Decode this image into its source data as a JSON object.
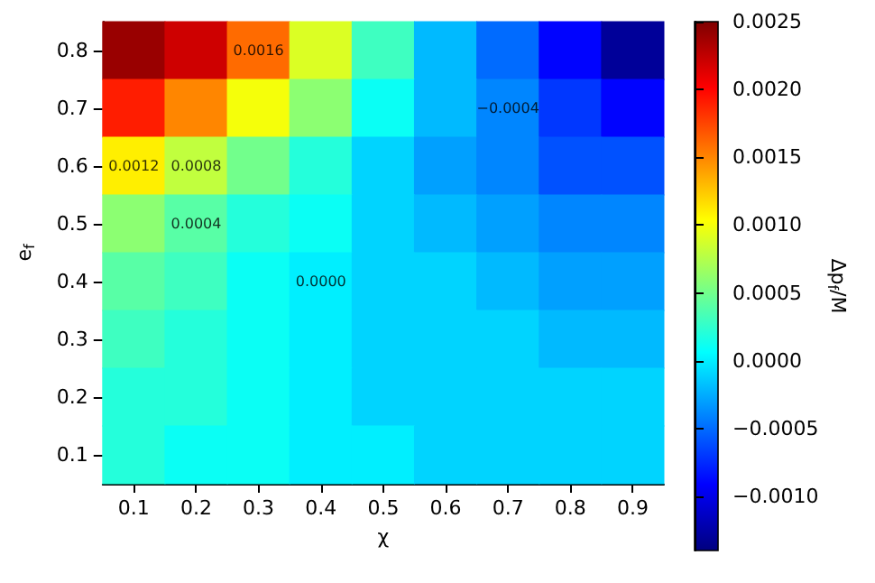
{
  "chart_data": {
    "type": "heatmap",
    "xlabel": "χ",
    "ylabel": "e$_{f}$",
    "clabel": "Δp$_{f}$/M",
    "categories": [
      "0.1",
      "0.2",
      "0.3",
      "0.4",
      "0.5",
      "0.6",
      "0.7",
      "0.8",
      "0.9"
    ],
    "y_categories": [
      "0.8",
      "0.7",
      "0.6",
      "0.5",
      "0.4",
      "0.3",
      "0.2",
      "0.1"
    ],
    "cells": [
      [
        0.0024,
        0.0022,
        0.0016,
        0.0009,
        0.0003,
        -0.0002,
        -0.0005,
        -0.0009,
        -0.0013
      ],
      [
        0.0019,
        0.0015,
        0.001,
        0.0006,
        0.0001,
        -0.0002,
        -0.0004,
        -0.0007,
        -0.0009
      ],
      [
        0.0011,
        0.0008,
        0.0005,
        0.0002,
        -0.0001,
        -0.0003,
        -0.0004,
        -0.0006,
        -0.0006
      ],
      [
        0.0006,
        0.0004,
        0.0002,
        0.0001,
        -0.0001,
        -0.0002,
        -0.0003,
        -0.0004,
        -0.0004
      ],
      [
        0.0004,
        0.0003,
        0.0001,
        0.0,
        -0.0001,
        -0.0001,
        -0.0002,
        -0.0003,
        -0.0003
      ],
      [
        0.0003,
        0.0002,
        0.0001,
        0.0,
        -0.0001,
        -0.0001,
        -0.0001,
        -0.0002,
        -0.0002
      ],
      [
        0.0002,
        0.0002,
        0.0001,
        0.0,
        -0.0001,
        -0.0001,
        -0.0001,
        -0.0001,
        -0.0001
      ],
      [
        0.0002,
        0.0001,
        0.0001,
        0.0,
        0.0,
        -0.0001,
        -0.0001,
        -0.0001,
        -0.0001
      ]
    ],
    "clim": [
      -0.0014,
      0.0025
    ],
    "cticks": [
      {
        "value": -0.001,
        "label": "−0.0010"
      },
      {
        "value": -0.0005,
        "label": "−0.0005"
      },
      {
        "value": 0,
        "label": "0.0000"
      },
      {
        "value": 0.0005,
        "label": "0.0005"
      },
      {
        "value": 0.001,
        "label": "0.0010"
      },
      {
        "value": 0.0015,
        "label": "0.0015"
      },
      {
        "value": 0.002,
        "label": "0.0020"
      },
      {
        "value": 0.0025,
        "label": "0.0025"
      }
    ],
    "annotations": [
      "0.0016",
      "0.0012",
      "0.0008",
      "0.0004",
      "0.0000",
      "−0.0004"
    ]
  }
}
